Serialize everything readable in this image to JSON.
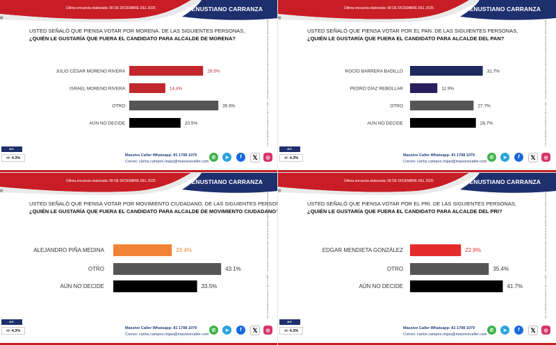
{
  "header": {
    "date_label": "Última encuesta elaborada: 08 DE DICIEMBRE DEL 2025",
    "municipality": "VENUSTIANO CARRANZA",
    "corner_mark": "e"
  },
  "footer": {
    "badge": "M.E.",
    "margin_of_error": "+/- 4.3%",
    "whatsapp_line": "Massive Caller Whatsapp: 81 1798 1079",
    "email_line": "Correo: carlos.campos.riojas@massivecaller.com",
    "social_icons": [
      "whatsapp-icon",
      "telegram-icon",
      "facebook-icon",
      "x-icon",
      "instagram-icon"
    ]
  },
  "disclaimer": "D.R. (C) MASSIVE CALLER S.A. DE C.V. 2025 — Se autoriza la reproducción total o parcial de la presente información citando la fuente",
  "colors": {
    "header_red": "#c81d25",
    "header_navy": "#1e2f6e",
    "morena": "#c1272d",
    "pan": "#1e2a5e",
    "mc": "#f08336",
    "pri": "#e52b2b",
    "otro": "#555555",
    "no_decide": "#000000"
  },
  "chart_data": [
    {
      "type": "bar",
      "orientation": "horizontal",
      "question_line1": "USTED SEÑALÓ QUE PIENSA VOTAR POR MORENA. DE LAS SIGUIENTES PERSONAS,",
      "question_line2": "¿QUIÉN LE GUSTARÍA QUE FUERA EL CANDIDATO PARA ALCALDE DE MORENA?",
      "categories": [
        "JULIO CÉSAR MORENO RIVERA",
        "ISRAEL MORENO RIVERA",
        "OTRO",
        "AÚN NO DECIDE"
      ],
      "values": [
        29.5,
        14.4,
        35.6,
        20.5
      ],
      "value_labels": [
        "29.5%",
        "14.4%",
        "35.6%",
        "20.5%"
      ],
      "bar_colors": [
        "#c1272d",
        "#c1272d",
        "#555555",
        "#000000"
      ],
      "label_colors": [
        "#c1272d",
        "#c1272d",
        "#333333",
        "#333333"
      ],
      "xlim": [
        0,
        40
      ]
    },
    {
      "type": "bar",
      "orientation": "horizontal",
      "question_line1": "USTED SEÑALÓ QUE PIENSA VOTAR POR EL PAN. DE LAS SIGUIENTES PERSONAS,",
      "question_line2": "¿QUIÉN LE GUSTARÍA QUE FUERA EL CANDIDATO PARA ALCALDE DEL PAN?",
      "categories": [
        "ROCÍO BARRERA BADILLO",
        "PEDRO DÍAZ REBOLLAR",
        "OTRO",
        "AÚN NO DECIDE"
      ],
      "values": [
        31.7,
        11.9,
        27.7,
        28.7
      ],
      "value_labels": [
        "31.7%",
        "11.9%",
        "27.7%",
        "28.7%"
      ],
      "bar_colors": [
        "#1e2a5e",
        "#2a1f5e",
        "#555555",
        "#000000"
      ],
      "label_colors": [
        "#333333",
        "#333333",
        "#333333",
        "#333333"
      ],
      "xlim": [
        0,
        40
      ]
    },
    {
      "type": "bar",
      "orientation": "horizontal",
      "question_line1": "USTED SEÑALÓ QUE PIENSA VOTAR POR MOVIMIENTO CIUDADANO. DE LAS SIGUIENTES PERSONAS,",
      "question_line2": "¿QUIÉN LE GUSTARÍA QUE FUERA EL CANDIDATO PARA ALCALDE DE MOVIMIENTO CIUDADANO?",
      "categories": [
        "ALEJANDRO PIÑA MEDINA",
        "OTRO",
        "AÚN NO DECIDE"
      ],
      "values": [
        23.4,
        43.1,
        33.5
      ],
      "value_labels": [
        "23.4%",
        "43.1%",
        "33.5%"
      ],
      "bar_colors": [
        "#f08336",
        "#555555",
        "#000000"
      ],
      "label_colors": [
        "#f08336",
        "#333333",
        "#333333"
      ],
      "xlim": [
        0,
        50
      ]
    },
    {
      "type": "bar",
      "orientation": "horizontal",
      "question_line1": "USTED SEÑALÓ QUE PIENSA VOTAR POR EL PRI. DE LAS SIGUIENTES PERSONAS,",
      "question_line2": "¿QUIÉN LE GUSTARÍA QUE FUERA EL CANDIDATO PARA ALCALDE DEL PRI?",
      "categories": [
        "EDGAR MENDIETA GONZÁLEZ",
        "OTRO",
        "AÚN NO DECIDE"
      ],
      "values": [
        22.9,
        35.4,
        41.7
      ],
      "value_labels": [
        "22.9%",
        "35.4%",
        "41.7%"
      ],
      "bar_colors": [
        "#e52b2b",
        "#555555",
        "#000000"
      ],
      "label_colors": [
        "#e52b2b",
        "#333333",
        "#333333"
      ],
      "xlim": [
        0,
        50
      ]
    }
  ]
}
